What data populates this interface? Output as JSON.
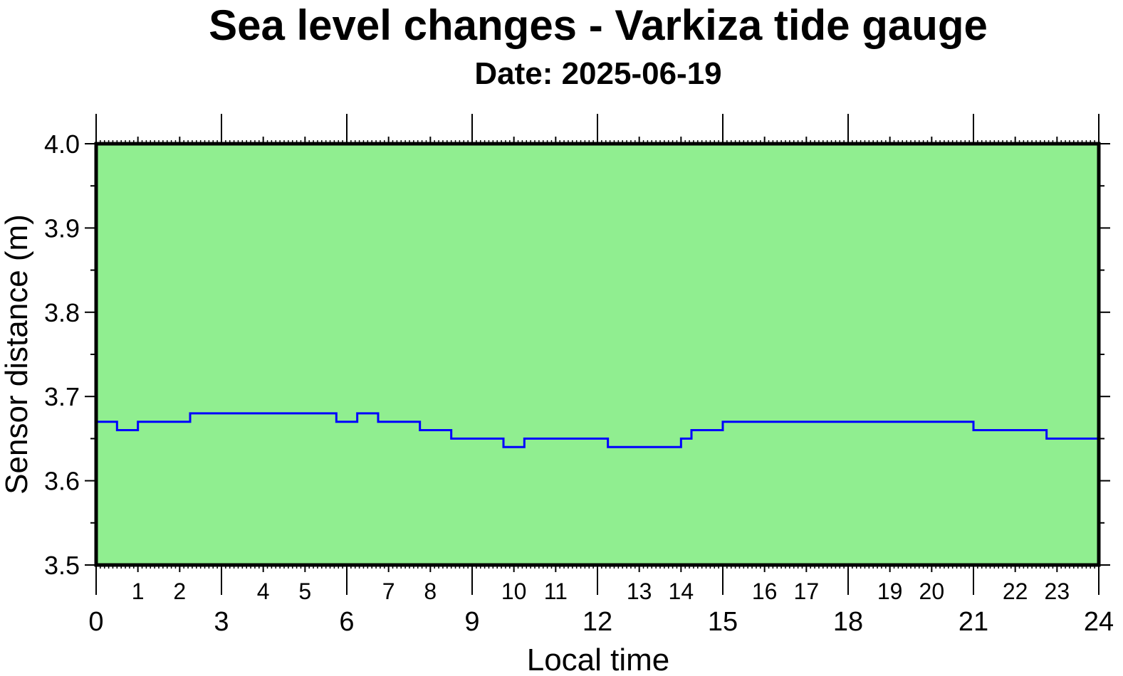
{
  "chart_data": {
    "type": "line",
    "title": "Sea level changes - Varkiza tide gauge",
    "subtitle": "Date: 2025-06-19",
    "xlabel": "Local time",
    "ylabel": "Sensor distance (m)",
    "xlim": [
      0,
      24
    ],
    "ylim": [
      3.5,
      4.0
    ],
    "x_major_ticks": [
      "0",
      "3",
      "6",
      "9",
      "12",
      "15",
      "18",
      "21",
      "24"
    ],
    "x_minor_labels": [
      "1",
      "2",
      "4",
      "5",
      "7",
      "8",
      "10",
      "11",
      "13",
      "14",
      "16",
      "17",
      "19",
      "20",
      "22",
      "23"
    ],
    "y_ticks": [
      "3.5",
      "3.6",
      "3.7",
      "3.8",
      "3.9",
      "4.0"
    ],
    "grid": false,
    "colors": {
      "plot_background": "#90ee90",
      "line": "#0000ff",
      "frame": "#000000"
    },
    "series": [
      {
        "x": [
          0.0,
          0.25,
          0.5,
          0.75,
          1.0,
          1.25,
          1.5,
          1.75,
          2.0,
          2.25,
          2.5,
          2.75,
          3.0,
          3.25,
          3.5,
          3.75,
          4.0,
          4.25,
          4.5,
          4.75,
          5.0,
          5.25,
          5.5,
          5.75,
          6.0,
          6.25,
          6.5,
          6.75,
          7.0,
          7.25,
          7.5,
          7.75,
          8.0,
          8.25,
          8.5,
          8.75,
          9.0,
          9.25,
          9.5,
          9.75,
          10.0,
          10.25,
          10.5,
          10.75,
          11.0,
          11.25,
          11.5,
          11.75,
          12.0,
          12.25,
          12.5,
          12.75,
          13.0,
          13.25,
          13.5,
          13.75,
          14.0,
          14.25,
          14.5,
          14.75,
          15.0,
          15.25,
          15.5,
          15.75,
          16.0,
          16.25,
          16.5,
          16.75,
          17.0,
          17.25,
          17.5,
          17.75,
          18.0,
          18.25,
          18.5,
          18.75,
          19.0,
          19.25,
          19.5,
          19.75,
          20.0,
          20.25,
          20.5,
          20.75,
          21.0,
          21.25,
          21.5,
          21.75,
          22.0,
          22.25,
          22.5,
          22.75,
          23.0,
          23.25,
          23.5,
          23.75,
          24.0
        ],
        "y": [
          3.67,
          3.67,
          3.66,
          3.66,
          3.67,
          3.67,
          3.67,
          3.67,
          3.67,
          3.68,
          3.68,
          3.68,
          3.68,
          3.68,
          3.68,
          3.68,
          3.68,
          3.68,
          3.68,
          3.68,
          3.68,
          3.68,
          3.68,
          3.67,
          3.67,
          3.68,
          3.68,
          3.67,
          3.67,
          3.67,
          3.67,
          3.66,
          3.66,
          3.66,
          3.65,
          3.65,
          3.65,
          3.65,
          3.65,
          3.64,
          3.64,
          3.65,
          3.65,
          3.65,
          3.65,
          3.65,
          3.65,
          3.65,
          3.65,
          3.64,
          3.64,
          3.64,
          3.64,
          3.64,
          3.64,
          3.64,
          3.65,
          3.66,
          3.66,
          3.66,
          3.67,
          3.67,
          3.67,
          3.67,
          3.67,
          3.67,
          3.67,
          3.67,
          3.67,
          3.67,
          3.67,
          3.67,
          3.67,
          3.67,
          3.67,
          3.67,
          3.67,
          3.67,
          3.67,
          3.67,
          3.67,
          3.67,
          3.67,
          3.67,
          3.66,
          3.66,
          3.66,
          3.66,
          3.66,
          3.66,
          3.66,
          3.65,
          3.65,
          3.65,
          3.65,
          3.65,
          3.66
        ]
      }
    ]
  }
}
